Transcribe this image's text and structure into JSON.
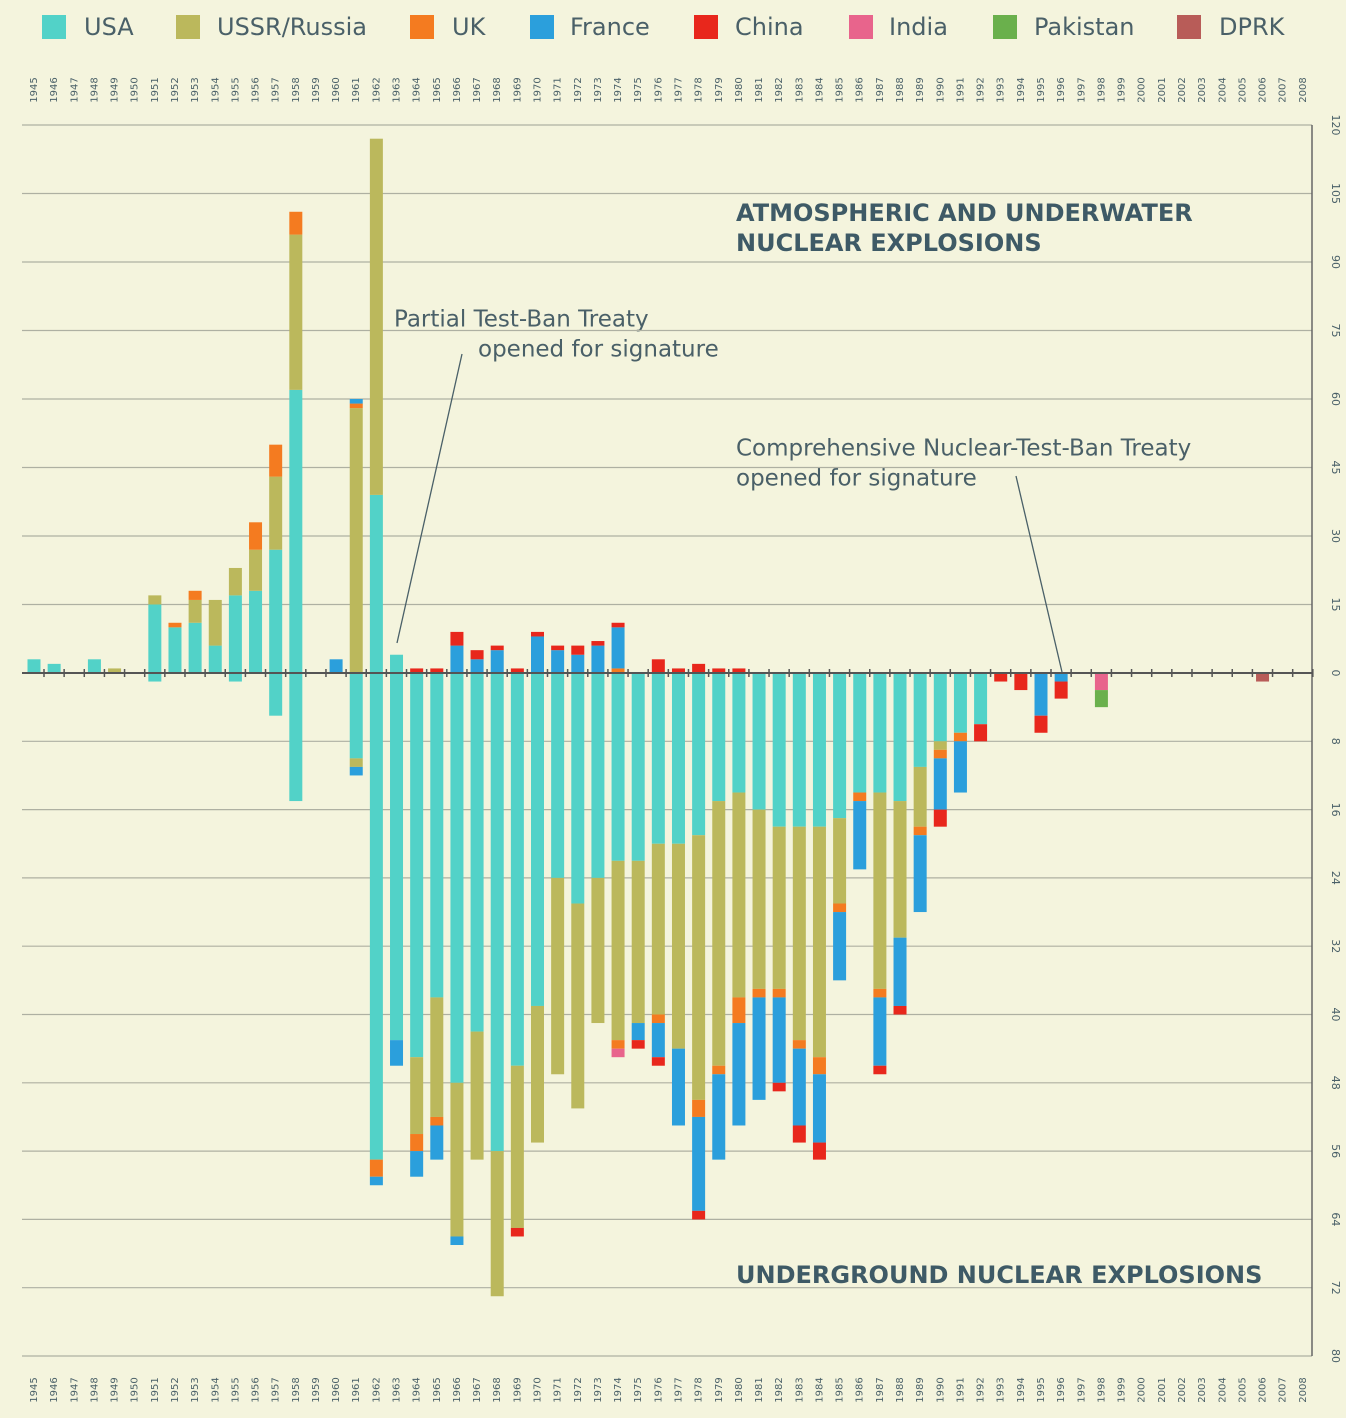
{
  "chart_data": [
    {
      "type": "bar",
      "title": [
        "ATMOSPHERIC AND UNDERWATER",
        "NUCLEAR EXPLOSIONS"
      ],
      "annotations": [
        {
          "text": [
            "Partial Test-Ban Treaty",
            "opened for signature"
          ]
        },
        {
          "text": [
            "Comprehensive Nuclear-Test-Ban Treaty",
            "opened for signature"
          ]
        }
      ],
      "categories": [
        "1945",
        "1946",
        "1947",
        "1948",
        "1949",
        "1950",
        "1951",
        "1952",
        "1953",
        "1954",
        "1955",
        "1956",
        "1957",
        "1958",
        "1959",
        "1960",
        "1961",
        "1962",
        "1963",
        "1964",
        "1965",
        "1966",
        "1967",
        "1968",
        "1969",
        "1970",
        "1971",
        "1972",
        "1973",
        "1974",
        "1975",
        "1976",
        "1977",
        "1978",
        "1979",
        "1980",
        "1981",
        "1982",
        "1983",
        "1984",
        "1985",
        "1986",
        "1987",
        "1988",
        "1989",
        "1990",
        "1991",
        "1992",
        "1993",
        "1994",
        "1995",
        "1996",
        "1997",
        "1998",
        "1999",
        "2000",
        "2001",
        "2002",
        "2003",
        "2004",
        "2005",
        "2006",
        "2007",
        "2008"
      ],
      "ylim": [
        0,
        120
      ],
      "yticks": [
        0,
        15,
        30,
        45,
        60,
        75,
        90,
        105,
        120
      ],
      "grid": true,
      "series": [
        {
          "name": "USA",
          "color": "#52d2c8",
          "values": [
            3,
            2,
            0,
            3,
            0,
            0,
            15,
            10,
            11,
            6,
            17,
            18,
            27,
            62,
            0,
            0,
            0,
            39,
            4,
            0,
            0,
            0,
            0,
            0,
            0,
            0,
            0,
            0,
            0,
            0,
            0,
            0,
            0,
            0,
            0,
            0,
            0,
            0,
            0,
            0,
            0,
            0,
            0,
            0,
            0,
            0,
            0,
            0,
            0,
            0,
            0,
            0,
            0,
            0,
            0,
            0,
            0,
            0,
            0,
            0,
            0,
            0,
            0,
            0
          ]
        },
        {
          "name": "USSR/Russia",
          "color": "#bbb85c",
          "values": [
            0,
            0,
            0,
            0,
            1,
            0,
            2,
            0,
            5,
            10,
            6,
            9,
            16,
            34,
            0,
            0,
            58,
            78,
            0,
            0,
            0,
            0,
            0,
            0,
            0,
            0,
            0,
            0,
            0,
            0,
            0,
            0,
            0,
            0,
            0,
            0,
            0,
            0,
            0,
            0,
            0,
            0,
            0,
            0,
            0,
            0,
            0,
            0,
            0,
            0,
            0,
            0,
            0,
            0,
            0,
            0,
            0,
            0,
            0,
            0,
            0,
            0,
            0,
            0
          ]
        },
        {
          "name": "UK",
          "color": "#f47b20",
          "values": [
            0,
            0,
            0,
            0,
            0,
            0,
            0,
            1,
            2,
            0,
            0,
            6,
            7,
            5,
            0,
            0,
            1,
            0,
            0,
            0,
            0,
            0,
            0,
            0,
            0,
            0,
            0,
            0,
            0,
            1,
            0,
            0,
            0,
            0,
            0,
            0,
            0,
            0,
            0,
            0,
            0,
            0,
            0,
            0,
            0,
            0,
            0,
            0,
            0,
            0,
            0,
            0,
            0,
            0,
            0,
            0,
            0,
            0,
            0,
            0,
            0,
            0,
            0,
            0
          ]
        },
        {
          "name": "France",
          "color": "#2b9fdc",
          "values": [
            0,
            0,
            0,
            0,
            0,
            0,
            0,
            0,
            0,
            0,
            0,
            0,
            0,
            0,
            0,
            3,
            1,
            0,
            0,
            0,
            0,
            6,
            3,
            5,
            0,
            8,
            5,
            4,
            6,
            9,
            0,
            0,
            0,
            0,
            0,
            0,
            0,
            0,
            0,
            0,
            0,
            0,
            0,
            0,
            0,
            0,
            0,
            0,
            0,
            0,
            0,
            0,
            0,
            0,
            0,
            0,
            0,
            0,
            0,
            0,
            0,
            0,
            0,
            0
          ]
        },
        {
          "name": "China",
          "color": "#e8271c",
          "values": [
            0,
            0,
            0,
            0,
            0,
            0,
            0,
            0,
            0,
            0,
            0,
            0,
            0,
            0,
            0,
            0,
            0,
            0,
            0,
            1,
            1,
            3,
            2,
            1,
            1,
            1,
            1,
            2,
            1,
            1,
            0,
            3,
            1,
            2,
            1,
            1,
            0,
            0,
            0,
            0,
            0,
            0,
            0,
            0,
            0,
            0,
            0,
            0,
            0,
            0,
            0,
            0,
            0,
            0,
            0,
            0,
            0,
            0,
            0,
            0,
            0,
            0,
            0,
            0
          ]
        },
        {
          "name": "India",
          "color": "#e8648c",
          "values": [
            0,
            0,
            0,
            0,
            0,
            0,
            0,
            0,
            0,
            0,
            0,
            0,
            0,
            0,
            0,
            0,
            0,
            0,
            0,
            0,
            0,
            0,
            0,
            0,
            0,
            0,
            0,
            0,
            0,
            0,
            0,
            0,
            0,
            0,
            0,
            0,
            0,
            0,
            0,
            0,
            0,
            0,
            0,
            0,
            0,
            0,
            0,
            0,
            0,
            0,
            0,
            0,
            0,
            0,
            0,
            0,
            0,
            0,
            0,
            0,
            0,
            0,
            0,
            0
          ]
        },
        {
          "name": "Pakistan",
          "color": "#6ab04c",
          "values": [
            0,
            0,
            0,
            0,
            0,
            0,
            0,
            0,
            0,
            0,
            0,
            0,
            0,
            0,
            0,
            0,
            0,
            0,
            0,
            0,
            0,
            0,
            0,
            0,
            0,
            0,
            0,
            0,
            0,
            0,
            0,
            0,
            0,
            0,
            0,
            0,
            0,
            0,
            0,
            0,
            0,
            0,
            0,
            0,
            0,
            0,
            0,
            0,
            0,
            0,
            0,
            0,
            0,
            0,
            0,
            0,
            0,
            0,
            0,
            0,
            0,
            0,
            0,
            0
          ]
        },
        {
          "name": "DPRK",
          "color": "#b85c58",
          "values": [
            0,
            0,
            0,
            0,
            0,
            0,
            0,
            0,
            0,
            0,
            0,
            0,
            0,
            0,
            0,
            0,
            0,
            0,
            0,
            0,
            0,
            0,
            0,
            0,
            0,
            0,
            0,
            0,
            0,
            0,
            0,
            0,
            0,
            0,
            0,
            0,
            0,
            0,
            0,
            0,
            0,
            0,
            0,
            0,
            0,
            0,
            0,
            0,
            0,
            0,
            0,
            0,
            0,
            0,
            0,
            0,
            0,
            0,
            0,
            0,
            0,
            0,
            0,
            0
          ]
        }
      ]
    },
    {
      "type": "bar",
      "title": "UNDERGROUND NUCLEAR EXPLOSIONS",
      "categories": [
        "1945",
        "1946",
        "1947",
        "1948",
        "1949",
        "1950",
        "1951",
        "1952",
        "1953",
        "1954",
        "1955",
        "1956",
        "1957",
        "1958",
        "1959",
        "1960",
        "1961",
        "1962",
        "1963",
        "1964",
        "1965",
        "1966",
        "1967",
        "1968",
        "1969",
        "1970",
        "1971",
        "1972",
        "1973",
        "1974",
        "1975",
        "1976",
        "1977",
        "1978",
        "1979",
        "1980",
        "1981",
        "1982",
        "1983",
        "1984",
        "1985",
        "1986",
        "1987",
        "1988",
        "1989",
        "1990",
        "1991",
        "1992",
        "1993",
        "1994",
        "1995",
        "1996",
        "1997",
        "1998",
        "1999",
        "2000",
        "2001",
        "2002",
        "2003",
        "2004",
        "2005",
        "2006",
        "2007",
        "2008"
      ],
      "ylim": [
        0,
        80
      ],
      "yticks": [
        8,
        16,
        24,
        32,
        40,
        48,
        56,
        64,
        72,
        80
      ],
      "grid": true,
      "series": [
        {
          "values": [
            0,
            0,
            0,
            0,
            0,
            0,
            1,
            0,
            0,
            0,
            1,
            0,
            5,
            15,
            0,
            0,
            10,
            57,
            43,
            45,
            38,
            48,
            42,
            56,
            46,
            39,
            24,
            27,
            24,
            22,
            22,
            20,
            20,
            19,
            15,
            14,
            16,
            18,
            18,
            18,
            17,
            14,
            14,
            15,
            11,
            8,
            7,
            6,
            0,
            0,
            0,
            0,
            0,
            0,
            0,
            0,
            0,
            0,
            0,
            0,
            0,
            0,
            0,
            0
          ]
        },
        {
          "values": [
            0,
            0,
            0,
            0,
            0,
            0,
            0,
            0,
            0,
            0,
            0,
            0,
            0,
            0,
            0,
            0,
            1,
            0,
            0,
            9,
            14,
            18,
            15,
            17,
            19,
            16,
            23,
            24,
            17,
            21,
            19,
            20,
            24,
            31,
            31,
            24,
            21,
            19,
            25,
            27,
            10,
            0,
            23,
            16,
            7,
            1,
            0,
            0,
            0,
            0,
            0,
            0,
            0,
            0,
            0,
            0,
            0,
            0,
            0,
            0,
            0,
            0,
            0,
            0
          ]
        },
        {
          "values": [
            0,
            0,
            0,
            0,
            0,
            0,
            0,
            0,
            0,
            0,
            0,
            0,
            0,
            0,
            0,
            0,
            0,
            2,
            0,
            2,
            1,
            0,
            0,
            0,
            0,
            0,
            0,
            0,
            0,
            1,
            0,
            1,
            0,
            2,
            1,
            3,
            1,
            1,
            1,
            2,
            1,
            1,
            1,
            0,
            1,
            1,
            1,
            0,
            0,
            0,
            0,
            0,
            0,
            0,
            0,
            0,
            0,
            0,
            0,
            0,
            0,
            0,
            0,
            0
          ]
        },
        {
          "values": [
            0,
            0,
            0,
            0,
            0,
            0,
            0,
            0,
            0,
            0,
            0,
            0,
            0,
            0,
            0,
            0,
            1,
            1,
            3,
            3,
            4,
            1,
            0,
            0,
            0,
            0,
            0,
            0,
            0,
            0,
            2,
            4,
            9,
            11,
            10,
            12,
            12,
            10,
            9,
            8,
            8,
            8,
            8,
            8,
            9,
            6,
            6,
            0,
            0,
            0,
            5,
            1,
            0,
            0,
            0,
            0,
            0,
            0,
            0,
            0,
            0,
            0,
            0,
            0
          ]
        },
        {
          "values": [
            0,
            0,
            0,
            0,
            0,
            0,
            0,
            0,
            0,
            0,
            0,
            0,
            0,
            0,
            0,
            0,
            0,
            0,
            0,
            0,
            0,
            0,
            0,
            0,
            1,
            0,
            0,
            0,
            0,
            0,
            1,
            1,
            0,
            1,
            0,
            0,
            0,
            1,
            2,
            2,
            0,
            0,
            1,
            1,
            0,
            2,
            0,
            2,
            1,
            2,
            2,
            2,
            0,
            0,
            0,
            0,
            0,
            0,
            0,
            0,
            0,
            0,
            0,
            0
          ]
        },
        {
          "values": [
            0,
            0,
            0,
            0,
            0,
            0,
            0,
            0,
            0,
            0,
            0,
            0,
            0,
            0,
            0,
            0,
            0,
            0,
            0,
            0,
            0,
            0,
            0,
            0,
            0,
            0,
            0,
            0,
            0,
            1,
            0,
            0,
            0,
            0,
            0,
            0,
            0,
            0,
            0,
            0,
            0,
            0,
            0,
            0,
            0,
            0,
            0,
            0,
            0,
            0,
            0,
            0,
            0,
            2,
            0,
            0,
            0,
            0,
            0,
            0,
            0,
            0,
            0,
            0
          ]
        },
        {
          "values": [
            0,
            0,
            0,
            0,
            0,
            0,
            0,
            0,
            0,
            0,
            0,
            0,
            0,
            0,
            0,
            0,
            0,
            0,
            0,
            0,
            0,
            0,
            0,
            0,
            0,
            0,
            0,
            0,
            0,
            0,
            0,
            0,
            0,
            0,
            0,
            0,
            0,
            0,
            0,
            0,
            0,
            0,
            0,
            0,
            0,
            0,
            0,
            0,
            0,
            0,
            0,
            0,
            0,
            2,
            0,
            0,
            0,
            0,
            0,
            0,
            0,
            0,
            0,
            0
          ]
        },
        {
          "values": [
            0,
            0,
            0,
            0,
            0,
            0,
            0,
            0,
            0,
            0,
            0,
            0,
            0,
            0,
            0,
            0,
            0,
            0,
            0,
            0,
            0,
            0,
            0,
            0,
            0,
            0,
            0,
            0,
            0,
            0,
            0,
            0,
            0,
            0,
            0,
            0,
            0,
            0,
            0,
            0,
            0,
            0,
            0,
            0,
            0,
            0,
            0,
            0,
            0,
            0,
            0,
            0,
            0,
            0,
            0,
            0,
            0,
            0,
            0,
            0,
            0,
            1,
            0,
            0
          ]
        }
      ]
    }
  ]
}
